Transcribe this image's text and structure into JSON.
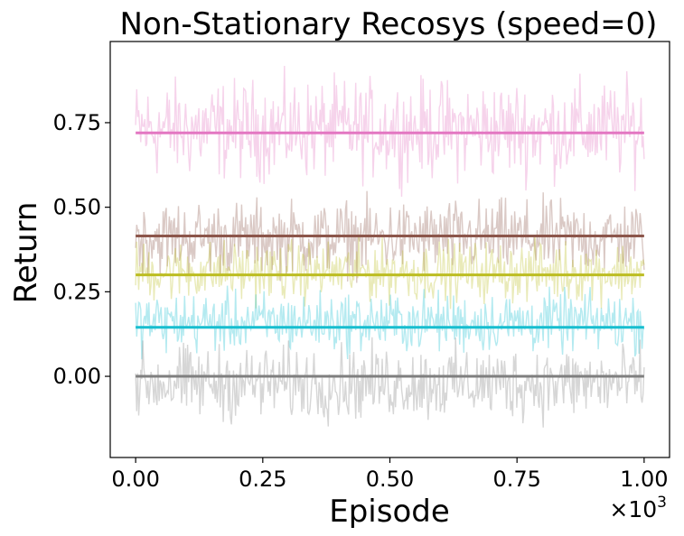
{
  "chart_data": {
    "type": "line",
    "title": "Non-Stationary Recosys (speed=0)",
    "xlabel": "Episode",
    "ylabel": "Return",
    "x_multiplier_label": "×10",
    "x_multiplier_exponent": "3",
    "xlim": [
      -0.05,
      1.05
    ],
    "ylim": [
      -0.24,
      0.99
    ],
    "xticks": [
      0.0,
      0.25,
      0.5,
      0.75,
      1.0
    ],
    "xtick_labels": [
      "0.00",
      "0.25",
      "0.50",
      "0.75",
      "1.00"
    ],
    "yticks": [
      0.0,
      0.25,
      0.5,
      0.75
    ],
    "ytick_labels": [
      "0.00",
      "0.25",
      "0.50",
      "0.75"
    ],
    "grid": false,
    "legend": "none",
    "series": [
      {
        "color": "#e377c2",
        "mean": 0.72,
        "noise_low": 0.52,
        "noise_high": 0.94,
        "x": [
          0.0,
          1.0
        ],
        "y": [
          0.72,
          0.72
        ]
      },
      {
        "color": "#8c564b",
        "mean": 0.415,
        "noise_low": 0.25,
        "noise_high": 0.57,
        "x": [
          0.0,
          1.0
        ],
        "y": [
          0.415,
          0.415
        ]
      },
      {
        "color": "#bcbd22",
        "mean": 0.3,
        "noise_low": 0.18,
        "noise_high": 0.44,
        "x": [
          0.0,
          1.0
        ],
        "y": [
          0.3,
          0.3
        ]
      },
      {
        "color": "#17becf",
        "mean": 0.145,
        "noise_low": 0.03,
        "noise_high": 0.29,
        "x": [
          0.0,
          1.0
        ],
        "y": [
          0.145,
          0.145
        ]
      },
      {
        "color": "#7f7f7f",
        "mean": 0.0,
        "noise_low": -0.18,
        "noise_high": 0.14,
        "x": [
          0.0,
          1.0
        ],
        "y": [
          0.0,
          0.0
        ]
      }
    ]
  }
}
